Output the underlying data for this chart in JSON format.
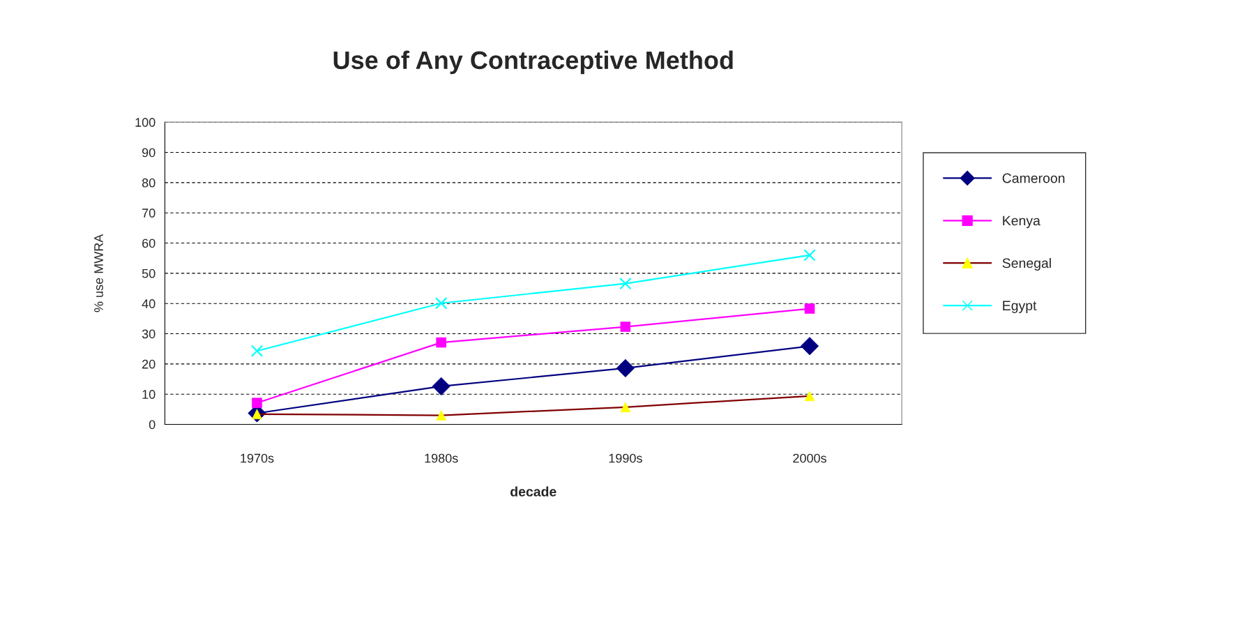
{
  "chart_data": {
    "type": "line",
    "title": "Use of Any Contraceptive Method",
    "xlabel": "decade",
    "ylabel": "% use MWRA",
    "categories": [
      "1970s",
      "1980s",
      "1990s",
      "2000s"
    ],
    "series": [
      {
        "name": "Cameroon",
        "color": "#000080",
        "marker": "diamond",
        "values": [
          3.7,
          12.6,
          18.6,
          25.9
        ]
      },
      {
        "name": "Kenya",
        "color": "#ff00ff",
        "marker": "square",
        "values": [
          7.1,
          27.1,
          32.3,
          38.3
        ]
      },
      {
        "name": "Senegal",
        "color": "#800000",
        "colors": [
          "#ffff00",
          "#ffff00",
          "#ffff00",
          "#ffff00"
        ],
        "marker": "triangle",
        "values": [
          3.4,
          3.0,
          5.7,
          9.4
        ]
      },
      {
        "name": "Egypt",
        "color": "#00ffff",
        "marker": "cross",
        "values": [
          24.3,
          40.1,
          46.6,
          56.0
        ]
      }
    ],
    "ylim": [
      0,
      100
    ],
    "yticks": [
      0,
      10,
      20,
      30,
      40,
      50,
      60,
      70,
      80,
      90,
      100
    ],
    "grid": "y",
    "legend": "right",
    "line_style": "solid"
  }
}
